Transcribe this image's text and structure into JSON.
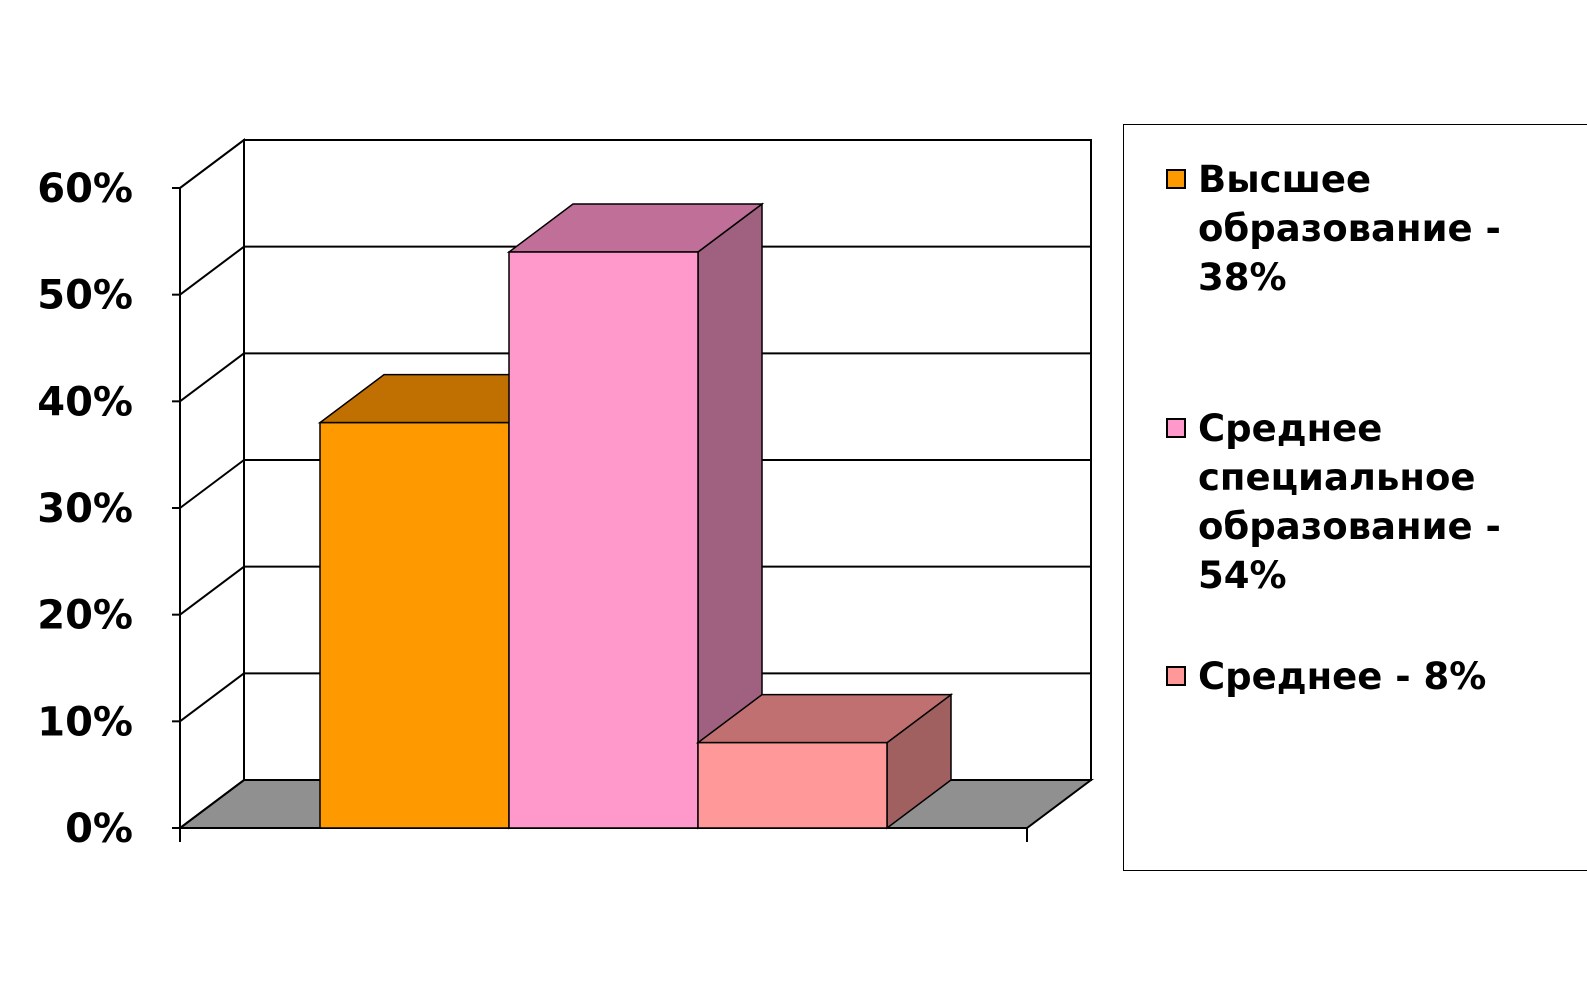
{
  "chart_data": {
    "type": "bar",
    "title": "",
    "xlabel": "",
    "ylabel": "",
    "ylim": [
      0,
      60
    ],
    "yticks": [
      "0%",
      "10%",
      "20%",
      "30%",
      "40%",
      "50%",
      "60%"
    ],
    "grid": true,
    "three_d": true,
    "legend_position": "right",
    "series": [
      {
        "name": "Высшее образование - 38%",
        "value": 38,
        "color": "#FF9900",
        "side_color": "#A86B00",
        "top_color": "#C07000"
      },
      {
        "name": "Среднее специальное образование - 54%",
        "value": 54,
        "color": "#FF99CC",
        "side_color": "#A06080",
        "top_color": "#C07098"
      },
      {
        "name": "Среднее - 8%",
        "value": 8,
        "color": "#FF9999",
        "side_color": "#A06060",
        "top_color": "#C07070"
      }
    ],
    "colors": {
      "floor": "#909090",
      "wall": "#ffffff",
      "axis": "#000000"
    }
  }
}
